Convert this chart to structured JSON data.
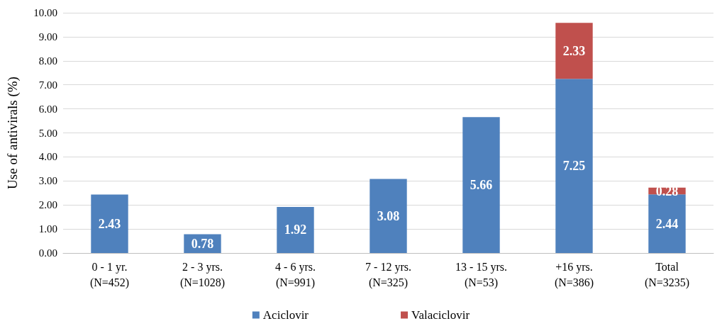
{
  "chart_data": {
    "type": "bar",
    "stacked": true,
    "ylabel": "Use of antivirals (%)",
    "categories": [
      "0 - 1 yr.\n(N=452)",
      "2 - 3 yrs.\n(N=1028)",
      "4 - 6 yrs.\n(N=991)",
      "7 - 12 yrs.\n(N=325)",
      "13 - 15 yrs.\n(N=53)",
      "+16 yrs.\n(N=386)",
      "Total\n(N=3235)"
    ],
    "series": [
      {
        "name": "Aciclovir",
        "color": "#4f81bd",
        "values": [
          2.43,
          0.78,
          1.92,
          3.08,
          5.66,
          7.25,
          2.44
        ]
      },
      {
        "name": "Valaciclovir",
        "color": "#c0504d",
        "values": [
          null,
          null,
          null,
          null,
          null,
          2.33,
          0.28
        ]
      }
    ],
    "ylim": [
      0,
      10
    ],
    "yticks": [
      {
        "value": 0,
        "label": "0.00"
      },
      {
        "value": 1,
        "label": "1.00"
      },
      {
        "value": 2,
        "label": "2.00"
      },
      {
        "value": 3,
        "label": "3.00"
      },
      {
        "value": 4,
        "label": "4.00"
      },
      {
        "value": 5,
        "label": "5.00"
      },
      {
        "value": 6,
        "label": "6.00"
      },
      {
        "value": 7,
        "label": "7.00"
      },
      {
        "value": 8,
        "label": "8.00"
      },
      {
        "value": 9,
        "label": "9.00"
      },
      {
        "value": 10,
        "label": "10.00"
      }
    ],
    "grid": "y",
    "legend": "bottom",
    "data_labels": true
  }
}
